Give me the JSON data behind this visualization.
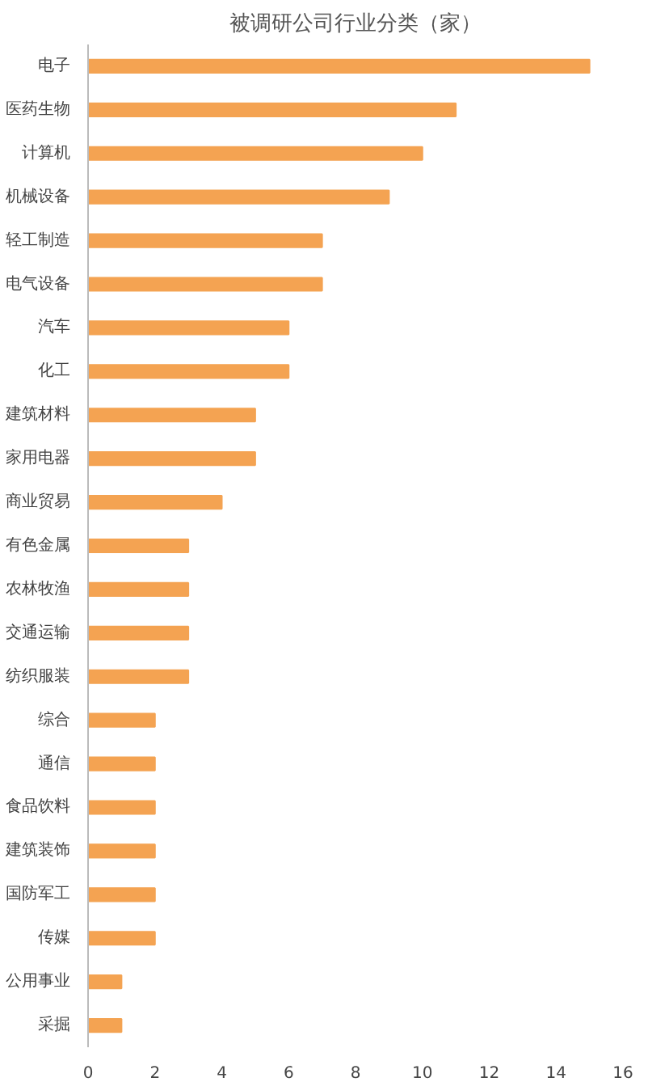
{
  "chart_data": {
    "type": "bar",
    "orientation": "horizontal",
    "title": "被调研公司行业分类（家）",
    "categories": [
      "电子",
      "医药生物",
      "计算机",
      "机械设备",
      "轻工制造",
      "电气设备",
      "汽车",
      "化工",
      "建筑材料",
      "家用电器",
      "商业贸易",
      "有色金属",
      "农林牧渔",
      "交通运输",
      "纺织服装",
      "综合",
      "通信",
      "食品饮料",
      "建筑装饰",
      "国防军工",
      "传媒",
      "公用事业",
      "采掘"
    ],
    "values": [
      15,
      11,
      10,
      9,
      7,
      7,
      6,
      6,
      5,
      5,
      4,
      3,
      3,
      3,
      3,
      2,
      2,
      2,
      2,
      2,
      2,
      1,
      1
    ],
    "color": "#f4a352",
    "xlim": [
      0,
      16
    ],
    "xticks": [
      0,
      2,
      4,
      6,
      8,
      10,
      12,
      14,
      16
    ],
    "grid": false
  }
}
